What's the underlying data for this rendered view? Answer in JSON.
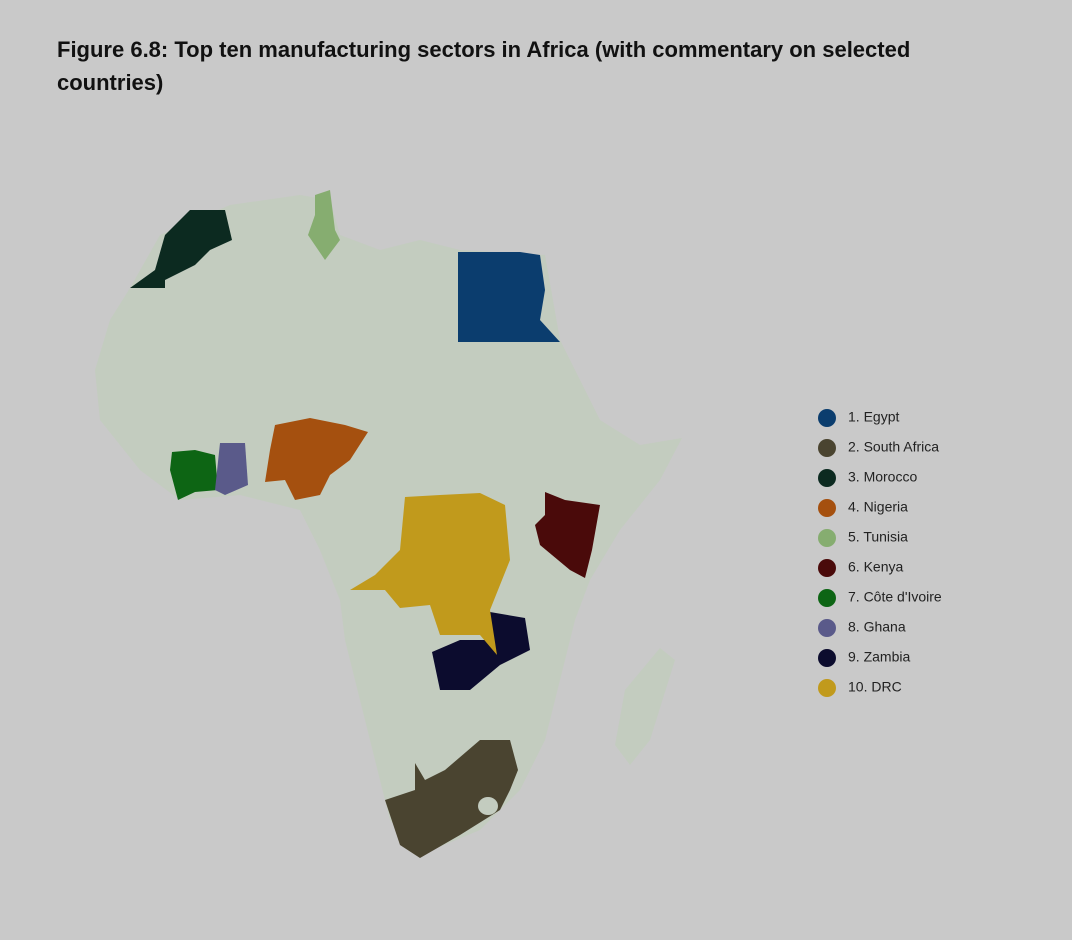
{
  "title": "Figure 6.8: Top ten manufacturing sectors in Africa (with commentary on selected countries)",
  "legend": [
    {
      "label": "1. Egypt",
      "color": "#0b3d6e"
    },
    {
      "label": "2. South Africa",
      "color": "#4a4430"
    },
    {
      "label": "3. Morocco",
      "color": "#0c2a20"
    },
    {
      "label": "4. Nigeria",
      "color": "#a5500f"
    },
    {
      "label": "5. Tunisia",
      "color": "#86ad70"
    },
    {
      "label": "6. Kenya",
      "color": "#4a0a0a"
    },
    {
      "label": "7. Côte d'Ivoire",
      "color": "#0d6514"
    },
    {
      "label": "8. Ghana",
      "color": "#5a5a8a"
    },
    {
      "label": "9. Zambia",
      "color": "#0c0c2e"
    },
    {
      "label": "10. DRC",
      "color": "#c19a1c"
    }
  ]
}
